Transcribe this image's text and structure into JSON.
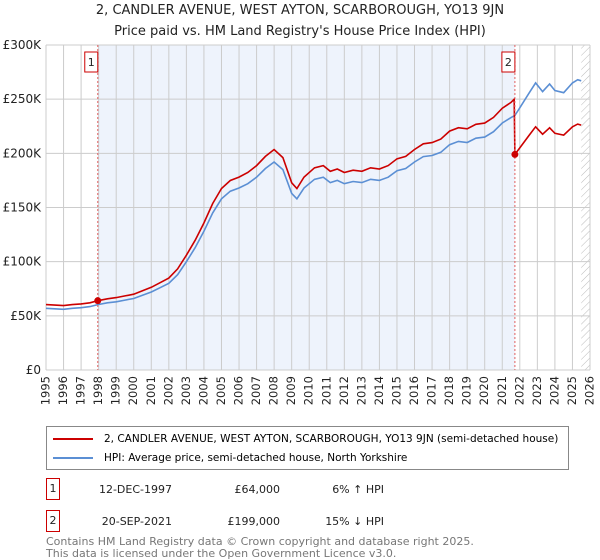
{
  "chart_data": {
    "type": "line",
    "title": "2, CANDLER AVENUE, WEST AYTON, SCARBOROUGH, YO13 9JN",
    "subtitle": "Price paid vs. HM Land Registry's House Price Index (HPI)",
    "xlim": [
      1995,
      2026
    ],
    "ylim": [
      0,
      300000
    ],
    "x_ticks": [
      "1995",
      "1996",
      "1997",
      "1998",
      "1999",
      "2000",
      "2001",
      "2002",
      "2003",
      "2004",
      "2005",
      "2006",
      "2007",
      "2008",
      "2009",
      "2010",
      "2011",
      "2012",
      "2013",
      "2014",
      "2015",
      "2016",
      "2017",
      "2018",
      "2019",
      "2020",
      "2021",
      "2022",
      "2023",
      "2024",
      "2025",
      "2026"
    ],
    "y_ticks": [
      {
        "v": 0,
        "label": "£0"
      },
      {
        "v": 50000,
        "label": "£50K"
      },
      {
        "v": 100000,
        "label": "£100K"
      },
      {
        "v": 150000,
        "label": "£150K"
      },
      {
        "v": 200000,
        "label": "£200K"
      },
      {
        "v": 250000,
        "label": "£250K"
      },
      {
        "v": 300000,
        "label": "£300K"
      }
    ],
    "grid": true,
    "shaded_range": [
      1997.95,
      2021.72
    ],
    "forecast_hatch_from": 2025.5,
    "series": [
      {
        "name": "2, CANDLER AVENUE, WEST AYTON, SCARBOROUGH, YO13 9JN (semi-detached house)",
        "color": "#cc0000",
        "x": [
          1995.0,
          1995.5,
          1996.0,
          1996.5,
          1997.0,
          1997.5,
          1997.95,
          1998.5,
          1999.0,
          1999.5,
          2000.0,
          2000.5,
          2001.0,
          2001.5,
          2002.0,
          2002.5,
          2003.0,
          2003.5,
          2004.0,
          2004.5,
          2005.0,
          2005.5,
          2006.0,
          2006.5,
          2007.0,
          2007.5,
          2008.0,
          2008.5,
          2009.0,
          2009.3,
          2009.7,
          2010.3,
          2010.8,
          2011.2,
          2011.6,
          2012.0,
          2012.5,
          2013.0,
          2013.5,
          2014.0,
          2014.5,
          2015.0,
          2015.5,
          2016.0,
          2016.5,
          2017.0,
          2017.5,
          2018.0,
          2018.5,
          2019.0,
          2019.5,
          2020.0,
          2020.5,
          2021.0,
          2021.5,
          2021.68,
          2021.72,
          2022.0,
          2022.5,
          2022.9,
          2023.3,
          2023.7,
          2024.0,
          2024.5,
          2025.0,
          2025.3,
          2025.5
        ],
        "y": [
          60400,
          59900,
          59400,
          60400,
          61000,
          62000,
          64000,
          65700,
          66800,
          68400,
          70000,
          73100,
          76300,
          80600,
          84800,
          93300,
          106000,
          119800,
          135700,
          153700,
          167500,
          174900,
          178100,
          182300,
          188700,
          197200,
          203500,
          196100,
          172800,
          167500,
          178100,
          186600,
          188700,
          183400,
          185500,
          182300,
          184400,
          183400,
          186600,
          185500,
          188700,
          195000,
          197200,
          203500,
          208800,
          209900,
          213100,
          220500,
          223700,
          222600,
          226800,
          227900,
          233200,
          241700,
          247000,
          250000,
          199000,
          205000,
          216000,
          224500,
          217700,
          223600,
          218500,
          216800,
          224500,
          227000,
          226100
        ]
      },
      {
        "name": "HPI: Average price, semi-detached house, North Yorkshire",
        "color": "#5b8fd4",
        "x": [
          1995.0,
          1995.5,
          1996.0,
          1996.5,
          1997.0,
          1997.5,
          1997.95,
          1998.5,
          1999.0,
          1999.5,
          2000.0,
          2000.5,
          2001.0,
          2001.5,
          2002.0,
          2002.5,
          2003.0,
          2003.5,
          2004.0,
          2004.5,
          2005.0,
          2005.5,
          2006.0,
          2006.5,
          2007.0,
          2007.5,
          2008.0,
          2008.5,
          2009.0,
          2009.3,
          2009.7,
          2010.3,
          2010.8,
          2011.2,
          2011.6,
          2012.0,
          2012.5,
          2013.0,
          2013.5,
          2014.0,
          2014.5,
          2015.0,
          2015.5,
          2016.0,
          2016.5,
          2017.0,
          2017.5,
          2018.0,
          2018.5,
          2019.0,
          2019.5,
          2020.0,
          2020.5,
          2021.0,
          2021.5,
          2021.72,
          2022.0,
          2022.5,
          2022.9,
          2023.3,
          2023.7,
          2024.0,
          2024.5,
          2025.0,
          2025.3,
          2025.5
        ],
        "y": [
          57000,
          56500,
          56000,
          57000,
          57500,
          58500,
          60400,
          62000,
          63000,
          64500,
          66000,
          69000,
          72000,
          76000,
          80000,
          88000,
          100000,
          113000,
          128000,
          145000,
          158000,
          165000,
          168000,
          172000,
          178000,
          186000,
          192000,
          185000,
          163000,
          158000,
          168000,
          176000,
          178000,
          173000,
          175000,
          172000,
          174000,
          173000,
          176000,
          175000,
          178000,
          184000,
          186000,
          192000,
          197000,
          198000,
          201000,
          208000,
          211000,
          210000,
          214000,
          215000,
          220000,
          228000,
          233000,
          235000,
          242000,
          255000,
          265000,
          257000,
          264000,
          258000,
          256000,
          265000,
          268000,
          267000
        ]
      }
    ],
    "annotations": [
      {
        "label": "1",
        "x": 1997.95,
        "y": 64000
      },
      {
        "label": "2",
        "x": 2021.72,
        "y": 199000
      }
    ]
  },
  "sales": [
    {
      "num": "1",
      "date": "12-DEC-1997",
      "price": "£64,000",
      "hpi": "6% ↑ HPI"
    },
    {
      "num": "2",
      "date": "20-SEP-2021",
      "price": "£199,000",
      "hpi": "15% ↓ HPI"
    }
  ],
  "footer": {
    "line1": "Contains HM Land Registry data © Crown copyright and database right 2025.",
    "line2": "This data is licensed under the Open Government Licence v3.0."
  }
}
